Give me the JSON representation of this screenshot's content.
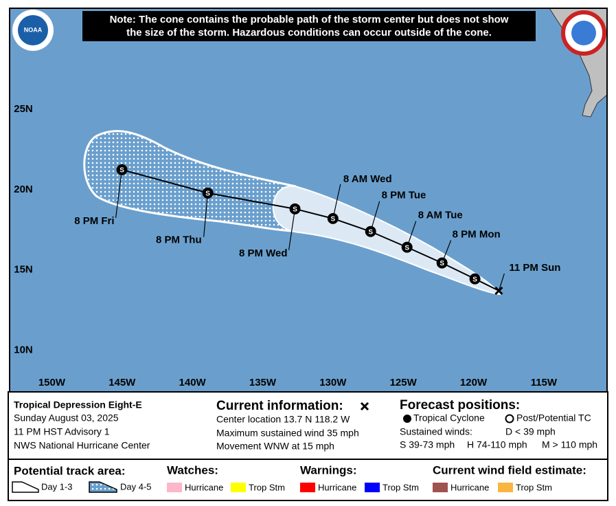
{
  "note": [
    "Note: The cone contains the probable path of the storm center but does not show",
    "the size of the storm. Hazardous conditions can occur outside of the cone."
  ],
  "logo": "NOAA",
  "map": {
    "xlim": [
      -153,
      -110.5
    ],
    "ylim": [
      7.4,
      31.3
    ],
    "xticks": [
      {
        "value": -150,
        "label": "150W"
      },
      {
        "value": -145,
        "label": "145W"
      },
      {
        "value": -140,
        "label": "140W"
      },
      {
        "value": -135,
        "label": "135W"
      },
      {
        "value": -130,
        "label": "130W"
      },
      {
        "value": -125,
        "label": "125W"
      },
      {
        "value": -120,
        "label": "120W"
      },
      {
        "value": -115,
        "label": "115W"
      }
    ],
    "yticks": [
      {
        "value": 10,
        "label": "10N"
      },
      {
        "value": 15,
        "label": "15N"
      },
      {
        "value": 20,
        "label": "20N"
      },
      {
        "value": 25,
        "label": "25N"
      }
    ]
  },
  "track": [
    {
      "label": "11 PM Sun",
      "lon": -118.2,
      "lat": 13.7
    },
    {
      "symbol": "S",
      "lon": -119.9,
      "lat": 14.44
    },
    {
      "label": "8 PM Mon",
      "symbol": "S",
      "lon": -122.24,
      "lat": 15.43
    },
    {
      "label": "8 AM Tue",
      "symbol": "S",
      "lon": -124.73,
      "lat": 16.41
    },
    {
      "label": "8 PM Tue",
      "symbol": "S",
      "lon": -127.32,
      "lat": 17.39
    },
    {
      "label": "8 AM Wed",
      "symbol": "S",
      "lon": -130.0,
      "lat": 18.2
    },
    {
      "label": "8 PM Wed",
      "symbol": "S",
      "lon": -132.7,
      "lat": 18.8
    },
    {
      "label": "8 PM Thu",
      "symbol": "S",
      "lon": -138.9,
      "lat": 19.79
    },
    {
      "label": "8 PM Fri",
      "symbol": "S",
      "lon": -145.01,
      "lat": 21.24
    }
  ],
  "info": {
    "storm": "Tropical Depression Eight-E",
    "date": "Sunday August 03, 2025",
    "advisory": "11 PM HST Advisory 1",
    "center": "NWS National Hurricane Center"
  },
  "current": {
    "title": "Current information:",
    "lines": [
      "Center location 13.7 N 118.2 W",
      "Maximum sustained wind 35 mph",
      "Movement WNW at 15 mph"
    ]
  },
  "forecast": {
    "title": "Forecast positions:",
    "tc": "Tropical Cyclone",
    "post": "Post/Potential TC",
    "winds": "Sustained winds:",
    "d": "D < 39 mph",
    "s": "S 39-73 mph",
    "h": "H 74-110 mph",
    "m": "M > 110 mph"
  },
  "legend": {
    "track_title": "Potential track area:",
    "day13": "Day 1-3",
    "day45": "Day 4-5",
    "groups": [
      {
        "title": "Watches:",
        "items": [
          {
            "name": "Hurricane",
            "color": "#ffb6c8"
          },
          {
            "name": "Trop Stm",
            "color": "#ffff00"
          }
        ]
      },
      {
        "title": "Warnings:",
        "items": [
          {
            "name": "Hurricane",
            "color": "#ff0000"
          },
          {
            "name": "Trop Stm",
            "color": "#0000ff"
          }
        ]
      },
      {
        "title": "Current wind field estimate:",
        "items": [
          {
            "name": "Hurricane",
            "color": "#a0524f"
          },
          {
            "name": "Trop Stm",
            "color": "#f8b640"
          }
        ]
      }
    ]
  }
}
